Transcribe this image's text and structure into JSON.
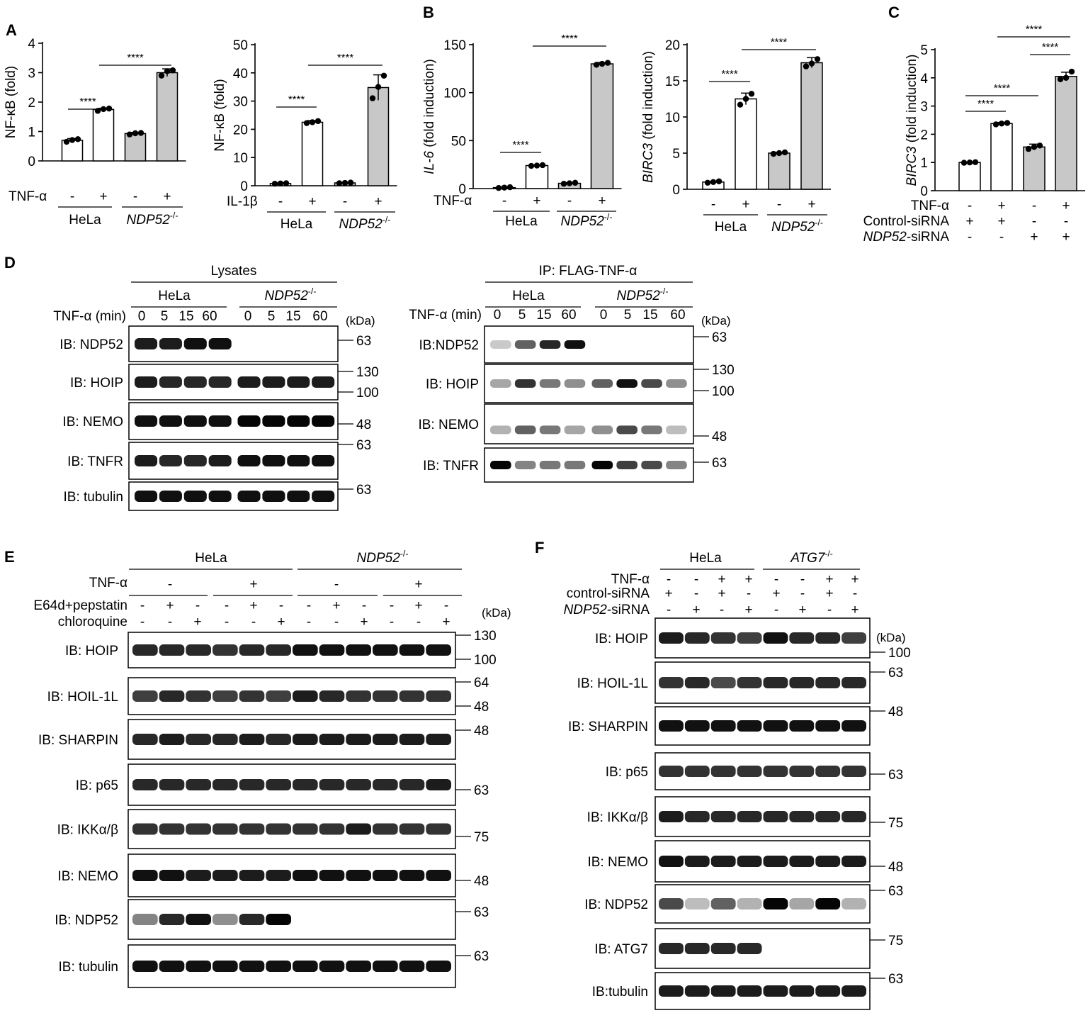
{
  "figure": {
    "panel_letters": [
      "A",
      "B",
      "C",
      "D",
      "E",
      "F"
    ],
    "sig": "****",
    "kda": "(kDa)",
    "hela": "HeLa",
    "ndp52_ko": "NDP52",
    "ko_sup": "-/-",
    "atg7_ko": "ATG7",
    "tnf": "TNF-α",
    "il1b": "IL-1β",
    "plus": "+",
    "minus": "-"
  },
  "chart_data": [
    {
      "type": "bar",
      "panel": "A",
      "ylabel": "NF-κB (fold)",
      "ylim": [
        0,
        4
      ],
      "yticks": [
        "0",
        "1",
        "2",
        "3",
        "4"
      ],
      "treatment_label": "TNF-α",
      "treatment_signs": [
        "-",
        "+",
        "-",
        "+"
      ],
      "groups": [
        "HeLa",
        "NDP52-/-"
      ],
      "values": [
        0.7,
        1.75,
        0.93,
        3.0
      ],
      "errors": [
        0.06,
        0.04,
        0.04,
        0.13
      ],
      "points": [
        [
          0.65,
          0.71,
          0.74
        ],
        [
          1.7,
          1.76,
          1.78
        ],
        [
          0.9,
          0.94,
          0.95
        ],
        [
          2.9,
          3.05,
          3.08
        ]
      ],
      "bar_colors": [
        "white",
        "white",
        "gray",
        "gray"
      ],
      "significance": [
        "****",
        "****"
      ]
    },
    {
      "type": "bar",
      "panel": "A",
      "ylabel": "NF-κB (fold)",
      "ylim": [
        0,
        50
      ],
      "yticks": [
        "0",
        "10",
        "20",
        "30",
        "40",
        "50"
      ],
      "treatment_label": "IL-1β",
      "treatment_signs": [
        "-",
        "+",
        "-",
        "+"
      ],
      "groups": [
        "HeLa",
        "NDP52-/-"
      ],
      "values": [
        0.8,
        22.5,
        1.0,
        34.8
      ],
      "errors": [
        0.2,
        0.6,
        0.2,
        4.5
      ],
      "points": [
        [
          0.7,
          0.8,
          0.9
        ],
        [
          22.2,
          22.5,
          22.9
        ],
        [
          0.9,
          1.0,
          1.1
        ],
        [
          31,
          35,
          39
        ]
      ],
      "bar_colors": [
        "white",
        "white",
        "gray",
        "gray"
      ],
      "significance": [
        "****",
        "****"
      ]
    },
    {
      "type": "bar",
      "panel": "B",
      "ylabel": "IL-6 (fold induction)",
      "ylim": [
        0,
        150
      ],
      "yticks": [
        "0",
        "50",
        "100",
        "150"
      ],
      "treatment_label": "TNF-α",
      "treatment_signs": [
        "-",
        "+",
        "-",
        "+"
      ],
      "groups": [
        "HeLa",
        "NDP52-/-"
      ],
      "values": [
        1,
        24,
        5.5,
        130
      ],
      "errors": [
        0.5,
        0.5,
        0.6,
        1.5
      ],
      "points": [
        [
          0.6,
          1,
          1.4
        ],
        [
          23.6,
          24,
          24.4
        ],
        [
          5,
          5.5,
          6
        ],
        [
          129,
          130,
          131
        ]
      ],
      "bar_colors": [
        "white",
        "white",
        "gray",
        "gray"
      ],
      "significance": [
        "****",
        "****"
      ]
    },
    {
      "type": "bar",
      "panel": "B",
      "ylabel": "BIRC3 (fold induction)",
      "ylim": [
        0,
        20
      ],
      "yticks": [
        "0",
        "5",
        "10",
        "15",
        "20"
      ],
      "treatment_signs": [
        "-",
        "+",
        "-",
        "+"
      ],
      "groups": [
        "HeLa",
        "NDP52-/-"
      ],
      "values": [
        1,
        12.5,
        5,
        17.5
      ],
      "errors": [
        0.1,
        0.8,
        0.1,
        0.7
      ],
      "points": [
        [
          0.9,
          1.0,
          1.1
        ],
        [
          11.7,
          12.5,
          13.2
        ],
        [
          4.9,
          5.0,
          5.1
        ],
        [
          17.0,
          17.4,
          18.0
        ]
      ],
      "bar_colors": [
        "white",
        "white",
        "gray",
        "gray"
      ],
      "significance": [
        "****",
        "****"
      ]
    },
    {
      "type": "bar",
      "panel": "C",
      "ylabel": "BIRC3 (fold induction)",
      "ylim": [
        0,
        5
      ],
      "yticks": [
        "0",
        "1",
        "2",
        "3",
        "4",
        "5"
      ],
      "rows": [
        {
          "label": "TNF-α",
          "signs": [
            "-",
            "+",
            "-",
            "+"
          ]
        },
        {
          "label": "Control-siRNA",
          "signs": [
            "+",
            "+",
            "-",
            "-"
          ]
        },
        {
          "label": "NDP52-siRNA",
          "signs": [
            "-",
            "-",
            "+",
            "+"
          ]
        }
      ],
      "values": [
        1.0,
        2.38,
        1.55,
        4.05
      ],
      "errors": [
        0.02,
        0.04,
        0.1,
        0.15
      ],
      "points": [
        [
          0.99,
          1.0,
          1.01
        ],
        [
          2.35,
          2.38,
          2.4
        ],
        [
          1.48,
          1.55,
          1.6
        ],
        [
          3.95,
          4.0,
          4.22
        ]
      ],
      "bar_colors": [
        "white",
        "white",
        "gray",
        "gray"
      ],
      "significance": [
        "****",
        "****",
        "****",
        "****"
      ]
    }
  ],
  "blot_d_left": {
    "title": "Lysates",
    "time_label": "TNF-α (min)",
    "times": [
      "0",
      "5",
      "15",
      "60",
      "0",
      "5",
      "15",
      "60"
    ],
    "rows": [
      {
        "label": "IB: NDP52",
        "markers": [
          "63"
        ]
      },
      {
        "label": "IB: HOIP",
        "markers": [
          "130",
          "100"
        ]
      },
      {
        "label": "IB: NEMO",
        "markers": [
          "48"
        ]
      },
      {
        "label": "IB: TNFR",
        "markers": [
          "63"
        ]
      },
      {
        "label": "IB: tubulin",
        "markers": [
          "63"
        ]
      }
    ]
  },
  "blot_d_right": {
    "title": "IP: FLAG-TNF-α",
    "time_label": "TNF-α (min)",
    "times": [
      "0",
      "5",
      "15",
      "60",
      "0",
      "5",
      "15",
      "60"
    ],
    "rows": [
      {
        "label": "IB:NDP52",
        "markers": [
          "63"
        ]
      },
      {
        "label": "IB: HOIP",
        "markers": [
          "130",
          "100"
        ]
      },
      {
        "label": "IB: NEMO",
        "markers": [
          "48"
        ]
      },
      {
        "label": "IB: TNFR",
        "markers": [
          "63"
        ]
      }
    ]
  },
  "blot_e": {
    "cond_rows": [
      {
        "label": "TNF-α",
        "signs": [
          "-",
          "+",
          "-",
          "+"
        ]
      },
      {
        "label": "E64d+pepstatin",
        "signs": [
          "-",
          "+",
          "-",
          "-",
          "+",
          "-",
          "-",
          "+",
          "-",
          "-",
          "+",
          "-"
        ]
      },
      {
        "label": "chloroquine",
        "signs": [
          "-",
          "-",
          "+",
          "-",
          "-",
          "+",
          "-",
          "-",
          "+",
          "-",
          "-",
          "+"
        ]
      }
    ],
    "rows": [
      {
        "label": "IB: HOIP",
        "markers": [
          "130",
          "100"
        ]
      },
      {
        "label": "IB: HOIL-1L",
        "markers": [
          "64",
          "48"
        ]
      },
      {
        "label": "IB: SHARPIN",
        "markers": [
          "48"
        ]
      },
      {
        "label": "IB: p65",
        "markers": [
          "63"
        ]
      },
      {
        "label": "IB: IKKα/β",
        "markers": [
          "75"
        ]
      },
      {
        "label": "IB: NEMO",
        "markers": [
          "48"
        ]
      },
      {
        "label": "IB: NDP52",
        "markers": [
          "63"
        ]
      },
      {
        "label": "IB: tubulin",
        "markers": [
          "63"
        ]
      }
    ]
  },
  "blot_f": {
    "cond_rows": [
      {
        "label": "TNF-α",
        "signs": [
          "-",
          "-",
          "+",
          "+",
          "-",
          "-",
          "+",
          "+"
        ]
      },
      {
        "label": "control-siRNA",
        "signs": [
          "+",
          "-",
          "+",
          "-",
          "+",
          "-",
          "+",
          "-"
        ]
      },
      {
        "label": "NDP52-siRNA",
        "signs": [
          "-",
          "+",
          "-",
          "+",
          "-",
          "+",
          "-",
          "+"
        ]
      }
    ],
    "rows": [
      {
        "label": "IB: HOIP",
        "markers": [
          "100"
        ]
      },
      {
        "label": "IB: HOIL-1L",
        "markers": [
          "63"
        ]
      },
      {
        "label": "IB: SHARPIN",
        "markers": [
          "48"
        ]
      },
      {
        "label": "IB: p65",
        "markers": [
          "63"
        ]
      },
      {
        "label": "IB: IKKα/β",
        "markers": [
          "75"
        ]
      },
      {
        "label": "IB: NEMO",
        "markers": [
          "48"
        ]
      },
      {
        "label": "IB: NDP52",
        "markers": [
          "63"
        ]
      },
      {
        "label": "IB: ATG7",
        "markers": [
          "75"
        ]
      },
      {
        "label": "IB:tubulin",
        "markers": [
          "63"
        ]
      }
    ]
  }
}
